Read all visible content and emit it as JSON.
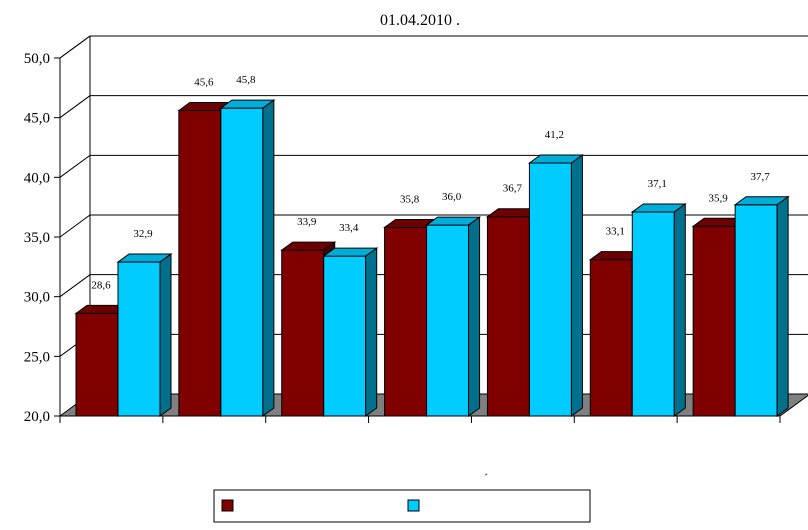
{
  "chart_data": {
    "type": "bar",
    "title": "01.04.2010 .",
    "categories": [
      "",
      "",
      "",
      "",
      "",
      "",
      ""
    ],
    "series": [
      {
        "color": "#800000",
        "values": [
          28.6,
          45.6,
          33.9,
          35.8,
          36.7,
          33.1,
          35.9
        ],
        "labels": [
          "28,6",
          "45,6",
          "33,9",
          "35,8",
          "36,7",
          "33,1",
          "35,9"
        ]
      },
      {
        "color": "#00CCFF",
        "values": [
          32.9,
          45.8,
          33.4,
          36.0,
          41.2,
          37.1,
          37.7
        ],
        "labels": [
          "32,9",
          "45,8",
          "33,4",
          "36,0",
          "41,2",
          "37,1",
          "37,7"
        ]
      }
    ],
    "ylim": [
      20,
      50
    ],
    "yticks": [
      20,
      25,
      30,
      35,
      40,
      45,
      50
    ],
    "ytick_labels": [
      "20,0",
      "25,0",
      "30,0",
      "35,0",
      "40,0",
      "45,0",
      "50,0"
    ],
    "grid": true,
    "floor_color": "#808080",
    "legend_position": "bottom",
    "stray_mark": "´"
  }
}
